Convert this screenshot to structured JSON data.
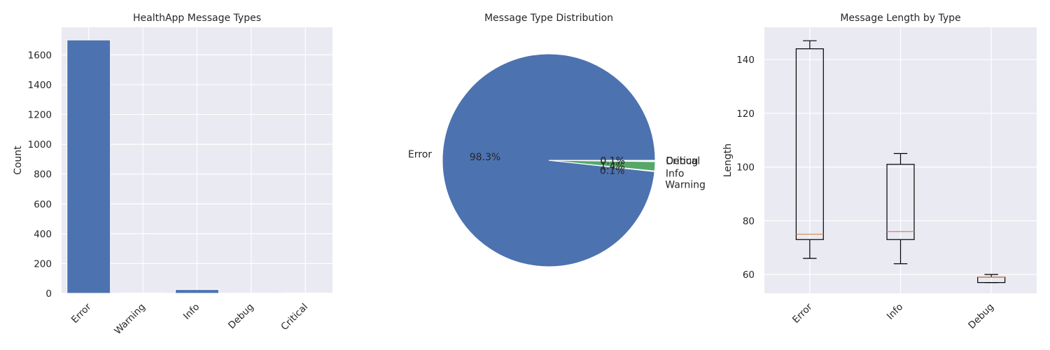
{
  "chart_data": [
    {
      "type": "bar",
      "title": "HealthApp Message Types",
      "xlabel": "",
      "ylabel": "Count",
      "categories": [
        "Error",
        "Warning",
        "Info",
        "Debug",
        "Critical"
      ],
      "values": [
        1700,
        2,
        25,
        1,
        2
      ],
      "ylim": [
        0,
        1785
      ],
      "yticks": [
        0,
        200,
        400,
        600,
        800,
        1000,
        1200,
        1400,
        1600
      ],
      "grid": true
    },
    {
      "type": "pie",
      "title": "Message Type Distribution",
      "labels": [
        "Error",
        "Warning",
        "Info",
        "Debug",
        "Critical"
      ],
      "values": [
        98.3,
        0.1,
        1.4,
        0.1,
        0.1
      ],
      "autopct": [
        "98.3%",
        "0.1%",
        "1.4%",
        "0.1%",
        "0.1%"
      ],
      "colors": [
        "#4c72b0",
        "#dd8452",
        "#55a868",
        "#c44e52",
        "#8172b3"
      ]
    },
    {
      "type": "box",
      "title": "Message Length by Type",
      "xlabel": "",
      "ylabel": "Length",
      "categories": [
        "Error",
        "Info",
        "Debug"
      ],
      "boxes": [
        {
          "whislo": 66,
          "q1": 73,
          "med": 75,
          "q3": 144,
          "whishi": 147
        },
        {
          "whislo": 64,
          "q1": 73,
          "med": 76,
          "q3": 101,
          "whishi": 105
        },
        {
          "whislo": 57,
          "q1": 57,
          "med": 59,
          "q3": 59,
          "whishi": 60
        }
      ],
      "ylim": [
        53,
        152
      ],
      "yticks": [
        60,
        80,
        100,
        120,
        140
      ],
      "grid": true
    }
  ],
  "colors": {
    "axes_bg": "#eaeaf2",
    "grid": "#ffffff",
    "bar": "#4c72b0",
    "median": "#dd8452"
  }
}
